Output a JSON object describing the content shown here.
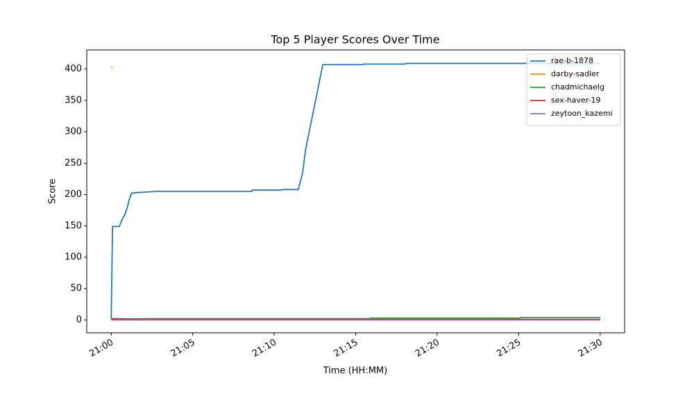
{
  "chart_data": {
    "type": "line",
    "title": "Top 5 Player Scores Over Time",
    "x_label": "Time (HH:MM)",
    "y_label": "Score",
    "xlim": [
      "20:58:30",
      "21:31:30"
    ],
    "ylim": [
      -20.5,
      430.5
    ],
    "xticks": [
      "21:00",
      "21:05",
      "21:10",
      "21:15",
      "21:20",
      "21:25",
      "21:30"
    ],
    "yticks": [
      0,
      50,
      100,
      150,
      200,
      250,
      300,
      350,
      400
    ],
    "legend": "upper right",
    "series": [
      {
        "name": "rae-b-1878",
        "color": "#1f77b4",
        "x": [
          "21:00:00",
          "21:00:05",
          "21:00:30",
          "21:00:40",
          "21:00:50",
          "21:01:00",
          "21:01:05",
          "21:01:15",
          "21:01:32",
          "21:02:15",
          "21:02:48",
          "21:08:38",
          "21:08:40",
          "21:10:26",
          "21:10:30",
          "21:11:29",
          "21:11:45",
          "21:11:55",
          "21:12:59",
          "21:15:27",
          "21:15:30",
          "21:18:00",
          "21:18:05",
          "21:30:00"
        ],
        "values": [
          2,
          149,
          149,
          160,
          168,
          180,
          190,
          202,
          203,
          204,
          205,
          205,
          207,
          207,
          208,
          208,
          235,
          270,
          407,
          407,
          408,
          408,
          409,
          409
        ]
      },
      {
        "name": "darby-sadler",
        "color": "#ff7f0e",
        "x": [
          "21:00:00",
          "21:00:05"
        ],
        "values": [
          403,
          403
        ]
      },
      {
        "name": "chadmichaelg",
        "color": "#2ca02c",
        "x": [
          "21:00:00",
          "21:02:08",
          "21:15:52",
          "21:15:53",
          "21:25:05",
          "21:25:06",
          "21:30:00"
        ],
        "values": [
          1,
          2,
          2,
          3,
          3,
          4,
          4
        ]
      },
      {
        "name": "sex-haver-19",
        "color": "#d62728",
        "x": [
          "21:00:00",
          "21:00:30",
          "21:02:00",
          "21:30:00"
        ],
        "values": [
          2,
          2,
          1,
          1
        ]
      },
      {
        "name": "zeytoon_kazemi",
        "color": "#9467bd",
        "x": [
          "21:00:00",
          "21:30:00"
        ],
        "values": [
          0,
          0
        ]
      }
    ]
  }
}
